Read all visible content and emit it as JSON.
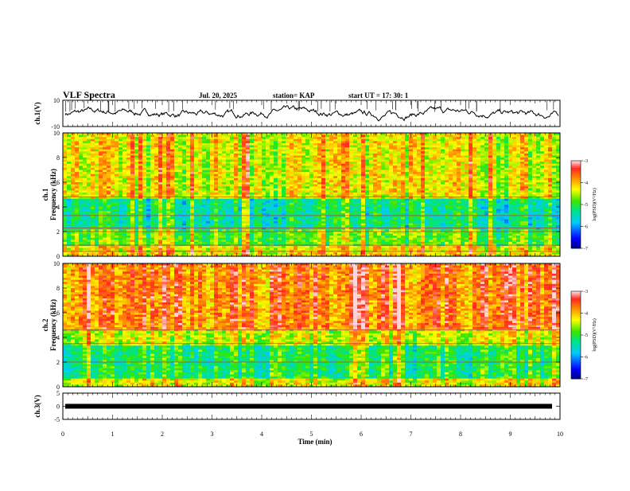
{
  "chart_data": {
    "type": "heatmap",
    "title": "VLF Spectra",
    "date": "Jul. 20, 2025",
    "station": "station= KAP",
    "start_time": "start  UT  =   17: 30: 1",
    "xlabel": "Time  (min)",
    "xlim": [
      0,
      10
    ],
    "x_ticks": [
      "0",
      "1",
      "2",
      "3",
      "4",
      "5",
      "6",
      "7",
      "8",
      "9",
      "10"
    ],
    "panels": [
      {
        "id": "ch1_voltage",
        "type": "line",
        "ylabel": "ch.1(V)",
        "ylim": [
          -10,
          10
        ],
        "y_ticks": [
          "10",
          "-10"
        ],
        "series_description": "noisy waveform hovering around 0 V, range about -5 to 5 V"
      },
      {
        "id": "ch1_spectrogram",
        "type": "heatmap",
        "ylabel_top": "ch.1",
        "ylabel": "Frequency  (kHz)",
        "ylim": [
          0,
          10
        ],
        "y_ticks": [
          "0",
          "2",
          "4",
          "6",
          "8",
          "10"
        ],
        "colorbar": {
          "label": "log(PSD)(V²/Hz)",
          "range": [
            -7,
            -3
          ],
          "ticks": [
            "-3",
            "-4",
            "-5",
            "-6",
            "-7"
          ]
        },
        "bands": [
          {
            "from": 0,
            "to": 0.8,
            "log_psd": -4.2
          },
          {
            "from": 0.8,
            "to": 2.2,
            "log_psd": -4.8
          },
          {
            "from": 2.2,
            "to": 4.6,
            "log_psd": -5.3
          },
          {
            "from": 4.6,
            "to": 10,
            "log_psd": -4.3
          }
        ],
        "lines_khz": [
          0.4,
          0.9,
          2.0,
          2.3,
          3.3,
          4.8
        ]
      },
      {
        "id": "ch2_spectrogram",
        "type": "heatmap",
        "ylabel_top": "ch.2",
        "ylabel": "Frequency  (kHz)",
        "ylim": [
          0,
          10
        ],
        "y_ticks": [
          "0",
          "2",
          "4",
          "6",
          "8",
          "10"
        ],
        "colorbar": {
          "label": "log(PSD)(V²/Hz)",
          "range": [
            -7,
            -3
          ],
          "ticks": [
            "-3",
            "-4",
            "-5",
            "-6",
            "-7"
          ]
        },
        "bands": [
          {
            "from": 0,
            "to": 0.6,
            "log_psd": -4.3
          },
          {
            "from": 0.6,
            "to": 3.4,
            "log_psd": -5.1
          },
          {
            "from": 3.4,
            "to": 4.6,
            "log_psd": -4.4
          },
          {
            "from": 4.6,
            "to": 10,
            "log_psd": -3.7
          }
        ],
        "lines_khz": [
          2.0,
          3.5,
          4.6
        ]
      },
      {
        "id": "ch3_voltage",
        "type": "line",
        "ylabel": "ch.3(V)",
        "ylim": [
          -5,
          5
        ],
        "y_ticks": [
          "5",
          "0",
          "-5"
        ],
        "series_description": "flat thick line near 0 V"
      }
    ]
  }
}
